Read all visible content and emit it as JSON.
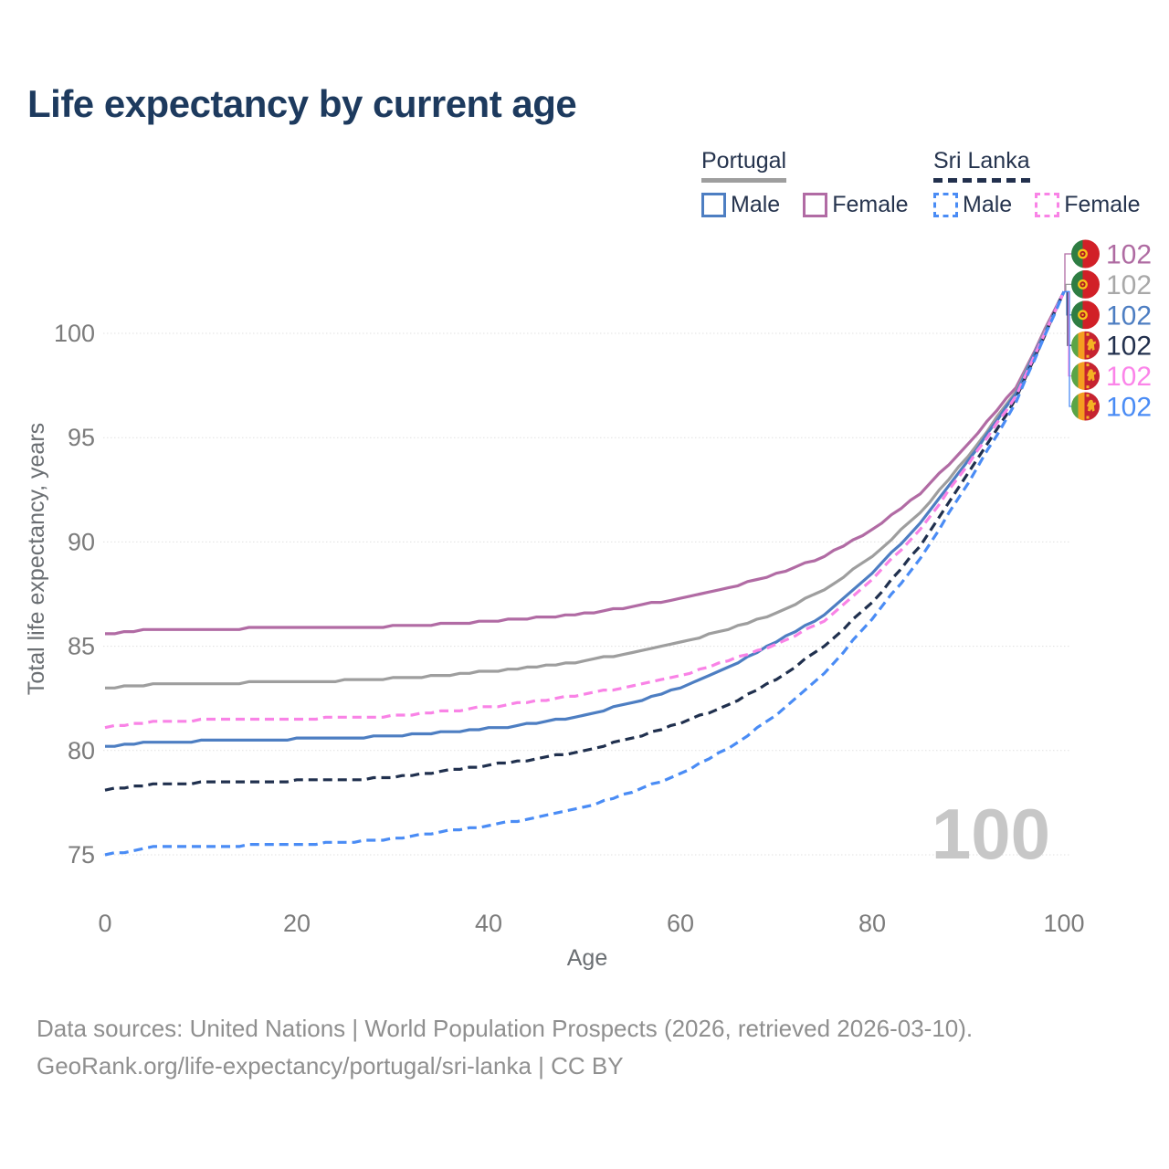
{
  "title": "Life expectancy by current age",
  "legend": {
    "groups": [
      {
        "label": "Portugal",
        "line_style": "solid",
        "underline_color": "#9e9e9e",
        "items": [
          {
            "label": "Male",
            "color": "#4d7ec2",
            "dashed": false
          },
          {
            "label": "Female",
            "color": "#b16ba4",
            "dashed": false
          }
        ]
      },
      {
        "label": "Sri Lanka",
        "line_style": "dashed",
        "underline_color": "#22304d",
        "items": [
          {
            "label": "Male",
            "color": "#4a8cf5",
            "dashed": true
          },
          {
            "label": "Female",
            "color": "#f983e6",
            "dashed": true
          }
        ]
      }
    ]
  },
  "watermark": "100",
  "footer": {
    "line1": "Data sources: United Nations | World Population Prospects (2026, retrieved 2026-03-10).",
    "line2": "GeoRank.org/life-expectancy/portugal/sri-lanka | CC BY"
  },
  "chart_data": {
    "type": "line",
    "title": "Life expectancy by current age",
    "xlabel": "Age",
    "ylabel": "Total life expectancy, years",
    "xlim": [
      0,
      100
    ],
    "ylim": [
      73.5,
      102.5
    ],
    "xticks": [
      0,
      20,
      40,
      60,
      80,
      100
    ],
    "yticks": [
      75,
      80,
      85,
      90,
      95,
      100
    ],
    "grid": true,
    "legend_position": "top-right",
    "age_step": 5,
    "ages": [
      0,
      5,
      10,
      15,
      20,
      25,
      30,
      35,
      40,
      45,
      50,
      55,
      60,
      65,
      70,
      75,
      80,
      85,
      90,
      95,
      100
    ],
    "series": [
      {
        "name": "Portugal Female",
        "country": "portugal",
        "sex": "female",
        "style": "solid",
        "color": "#b16ba4",
        "label_color": "#af6ba2",
        "end_label": "102",
        "flag": "portugal",
        "values": [
          85.6,
          85.8,
          85.82,
          85.85,
          85.87,
          85.9,
          85.95,
          86.05,
          86.2,
          86.35,
          86.55,
          86.9,
          87.3,
          87.8,
          88.45,
          89.3,
          90.55,
          92.3,
          94.7,
          97.4,
          102
        ]
      },
      {
        "name": "Portugal Total",
        "country": "portugal",
        "sex": "both",
        "style": "solid",
        "color": "#9e9e9e",
        "label_color": "#a8a8a8",
        "end_label": "102",
        "flag": "portugal",
        "values": [
          83.0,
          83.15,
          83.2,
          83.25,
          83.3,
          83.35,
          83.45,
          83.6,
          83.8,
          84.0,
          84.3,
          84.7,
          85.2,
          85.8,
          86.6,
          87.7,
          89.3,
          91.4,
          94.1,
          97.2,
          102
        ]
      },
      {
        "name": "Portugal Male",
        "country": "portugal",
        "sex": "male",
        "style": "solid",
        "color": "#4d7ec2",
        "label_color": "#4d7ec2",
        "end_label": "102",
        "flag": "portugal",
        "values": [
          80.2,
          80.4,
          80.45,
          80.5,
          80.55,
          80.6,
          80.7,
          80.85,
          81.05,
          81.3,
          81.7,
          82.3,
          83.0,
          83.95,
          85.2,
          86.5,
          88.5,
          90.9,
          93.9,
          97.1,
          102
        ]
      },
      {
        "name": "Sri Lanka Total",
        "country": "sri-lanka",
        "sex": "both",
        "style": "dashed",
        "color": "#20304e",
        "label_color": "#22304d",
        "end_label": "102",
        "flag": "srilanka",
        "values": [
          78.1,
          78.4,
          78.45,
          78.5,
          78.55,
          78.6,
          78.72,
          79.0,
          79.3,
          79.6,
          80.0,
          80.6,
          81.3,
          82.2,
          83.4,
          85.0,
          87.1,
          89.8,
          93.3,
          96.85,
          102
        ]
      },
      {
        "name": "Sri Lanka Female",
        "country": "sri-lanka",
        "sex": "female",
        "style": "dashed",
        "color": "#f983e6",
        "label_color": "#fb84e9",
        "end_label": "102",
        "flag": "srilanka",
        "values": [
          81.1,
          81.4,
          81.45,
          81.5,
          81.52,
          81.57,
          81.65,
          81.85,
          82.1,
          82.35,
          82.7,
          83.1,
          83.6,
          84.3,
          85.1,
          86.2,
          88.2,
          90.6,
          93.7,
          97.0,
          102
        ]
      },
      {
        "name": "Sri Lanka Male",
        "country": "sri-lanka",
        "sex": "male",
        "style": "dashed",
        "color": "#4a8cf5",
        "label_color": "#4a8cf5",
        "end_label": "102",
        "flag": "srilanka",
        "values": [
          75.0,
          75.35,
          75.4,
          75.45,
          75.5,
          75.6,
          75.78,
          76.1,
          76.4,
          76.8,
          77.3,
          78.0,
          78.9,
          80.1,
          81.7,
          83.7,
          86.3,
          89.2,
          92.8,
          96.7,
          102
        ]
      }
    ]
  },
  "colors": {
    "grid": "#e1e1e1",
    "tick": "#7c7c7c",
    "title": "#1d3a5e",
    "footer": "#8f8f8f",
    "watermark": "#c7c7c7",
    "portugal_flag": {
      "green": "#2e7d43",
      "red": "#d12027",
      "gold": "#f7c31a"
    },
    "srilanka_flag": {
      "green": "#5aa546",
      "orange": "#f59e20",
      "maroon": "#c62330",
      "gold": "#f4b223"
    }
  }
}
